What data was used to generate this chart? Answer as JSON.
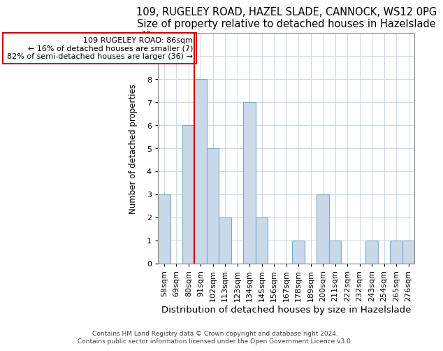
{
  "title1": "109, RUGELEY ROAD, HAZEL SLADE, CANNOCK, WS12 0PG",
  "title2": "Size of property relative to detached houses in Hazelslade",
  "xlabel": "Distribution of detached houses by size in Hazelslade",
  "ylabel": "Number of detached properties",
  "footer1": "Contains HM Land Registry data © Crown copyright and database right 2024.",
  "footer2": "Contains public sector information licensed under the Open Government Licence v3.0.",
  "categories": [
    "58sqm",
    "69sqm",
    "80sqm",
    "91sqm",
    "102sqm",
    "113sqm",
    "123sqm",
    "134sqm",
    "145sqm",
    "156sqm",
    "167sqm",
    "178sqm",
    "189sqm",
    "200sqm",
    "211sqm",
    "222sqm",
    "232sqm",
    "243sqm",
    "254sqm",
    "265sqm",
    "276sqm"
  ],
  "values": [
    3,
    0,
    6,
    8,
    5,
    2,
    0,
    7,
    2,
    0,
    0,
    1,
    0,
    3,
    1,
    0,
    0,
    1,
    0,
    1,
    1
  ],
  "bar_color": "#c9d9ea",
  "bar_edge_color": "#7aaac8",
  "annotation_title": "109 RUGELEY ROAD: 86sqm",
  "annotation_line1": "← 16% of detached houses are smaller (7)",
  "annotation_line2": "82% of semi-detached houses are larger (36) →",
  "annotation_box_color": "#cc0000",
  "red_line_index": 2.5,
  "ylim": [
    0,
    10
  ],
  "yticks": [
    0,
    1,
    2,
    3,
    4,
    5,
    6,
    7,
    8,
    9,
    10
  ],
  "title1_fontsize": 10.5,
  "title2_fontsize": 9.5,
  "xlabel_fontsize": 9.5,
  "ylabel_fontsize": 8.5,
  "tick_fontsize": 8,
  "annotation_fontsize": 8,
  "footer_fontsize": 6.5,
  "background_color": "#ffffff",
  "plot_bg_color": "#ffffff",
  "grid_color": "#c8d8e8"
}
